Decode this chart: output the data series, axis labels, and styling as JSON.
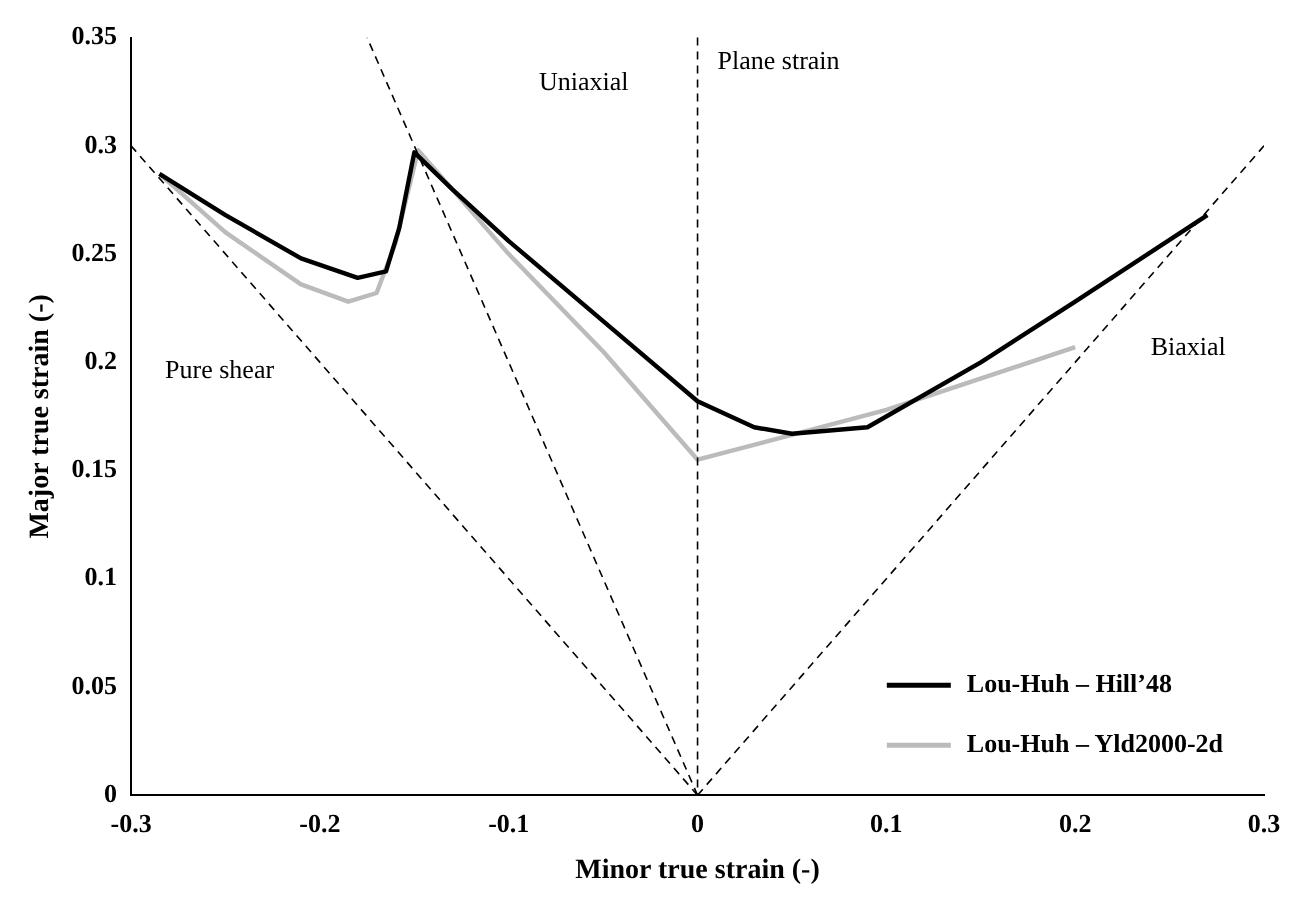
{
  "chart_data": {
    "type": "line",
    "xlabel": "Minor true strain (-)",
    "ylabel": "Major true strain (-)",
    "xlim": [
      -0.3,
      0.3
    ],
    "xticks": [
      -0.3,
      -0.2,
      -0.1,
      0,
      0.1,
      0.2,
      0.3
    ],
    "ylim": [
      0,
      0.35
    ],
    "yticks": [
      0,
      0.05,
      0.1,
      0.15,
      0.2,
      0.25,
      0.3,
      0.35
    ],
    "grid": false,
    "legend": "bottom right",
    "marker": "none",
    "series": [
      {
        "line_style": "dashed",
        "color": "#000000",
        "x": [
          0,
          -0.3
        ],
        "values": [
          0,
          0.3
        ]
      },
      {
        "line_style": "dashed",
        "color": "#000000",
        "x": [
          0,
          -0.175
        ],
        "values": [
          0,
          0.35
        ]
      },
      {
        "line_style": "dashed",
        "color": "#000000",
        "x": [
          0,
          0.3
        ],
        "values": [
          0,
          0.3
        ]
      },
      {
        "name": "Lou-Huh – Hill’48",
        "line_style": "solid",
        "color": "#000000",
        "x": [
          -0.285,
          -0.25,
          -0.21,
          -0.18,
          -0.165,
          -0.158,
          -0.15,
          -0.13,
          -0.1,
          -0.05,
          0,
          0.03,
          0.05,
          0.09,
          0.15,
          0.2,
          0.27
        ],
        "values": [
          0.287,
          0.268,
          0.248,
          0.239,
          0.242,
          0.262,
          0.297,
          0.28,
          0.256,
          0.219,
          0.182,
          0.17,
          0.167,
          0.17,
          0.2,
          0.228,
          0.268
        ]
      },
      {
        "name": "Lou-Huh – Yld2000-2d",
        "line_style": "solid",
        "color": "#bbbbbb",
        "x": [
          -0.285,
          -0.25,
          -0.21,
          -0.185,
          -0.17,
          -0.16,
          -0.148,
          -0.13,
          -0.1,
          -0.05,
          0,
          0.1,
          0.2
        ],
        "values": [
          0.287,
          0.26,
          0.236,
          0.228,
          0.232,
          0.255,
          0.298,
          0.28,
          0.25,
          0.205,
          0.155,
          0.178,
          0.207
        ]
      }
    ],
    "ref_lines": [
      {
        "axis": "x",
        "value": 0,
        "label": "Plane strain",
        "line_style": "dashed",
        "color": "#000000"
      }
    ],
    "annotations": [
      "Uniaxial",
      "Pure shear",
      "Biaxial"
    ]
  }
}
